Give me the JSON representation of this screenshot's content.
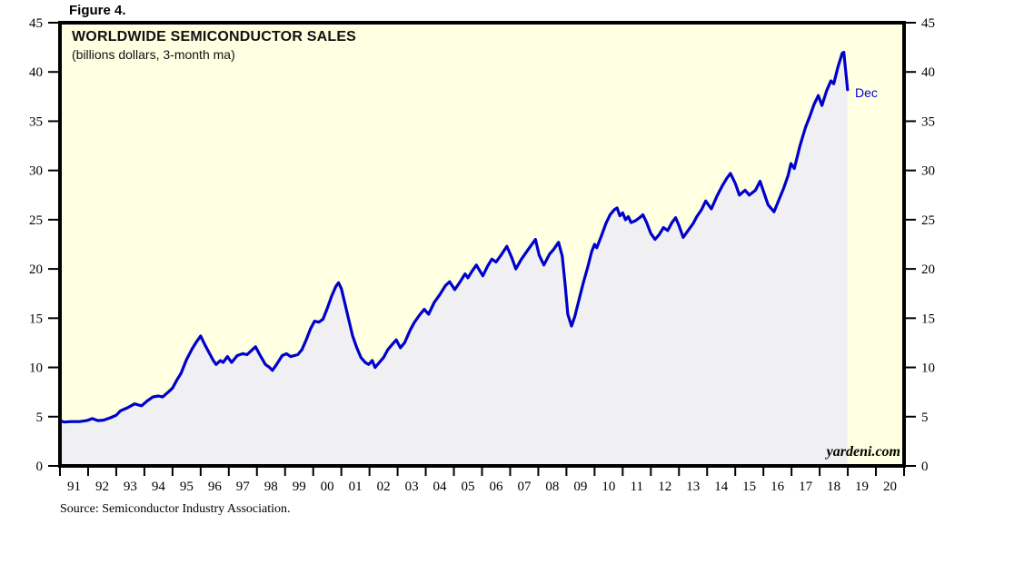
{
  "figure_label": "Figure 4.",
  "source_note": "Source: Semiconductor Industry Association.",
  "watermark": "yardeni.com",
  "chart_data": {
    "type": "line",
    "title": "WORLDWIDE SEMICONDUCTOR SALES",
    "subtitle": "(billions dollars, 3-month ma)",
    "series_name": "Worldwide semiconductor sales, billions of dollars, 3-month moving average",
    "xlabel": "",
    "ylabel": "",
    "x_range": [
      1991,
      2021
    ],
    "ylim": [
      0,
      45
    ],
    "y_ticks": [
      0,
      5,
      10,
      15,
      20,
      25,
      30,
      35,
      40,
      45
    ],
    "x_tick_labels": [
      "91",
      "92",
      "93",
      "94",
      "95",
      "96",
      "97",
      "98",
      "99",
      "00",
      "01",
      "02",
      "03",
      "04",
      "05",
      "06",
      "07",
      "08",
      "09",
      "10",
      "11",
      "12",
      "13",
      "14",
      "15",
      "16",
      "17",
      "18",
      "19",
      "20"
    ],
    "grid": false,
    "legend": "none",
    "plot_bg": "#ffffe1",
    "fill_color": "#f0f0f2",
    "line_color": "#0000cc",
    "annotations": [
      {
        "text": "Dec",
        "t": 2018.99,
        "v": 38.2
      }
    ],
    "points": [
      [
        1991.0,
        4.6
      ],
      [
        1991.15,
        4.45
      ],
      [
        1991.4,
        4.5
      ],
      [
        1991.7,
        4.5
      ],
      [
        1991.95,
        4.6
      ],
      [
        1992.15,
        4.8
      ],
      [
        1992.35,
        4.6
      ],
      [
        1992.55,
        4.65
      ],
      [
        1992.8,
        4.9
      ],
      [
        1993.0,
        5.15
      ],
      [
        1993.15,
        5.6
      ],
      [
        1993.4,
        5.9
      ],
      [
        1993.65,
        6.3
      ],
      [
        1993.9,
        6.1
      ],
      [
        1994.1,
        6.6
      ],
      [
        1994.3,
        7.0
      ],
      [
        1994.5,
        7.1
      ],
      [
        1994.65,
        7.0
      ],
      [
        1994.85,
        7.5
      ],
      [
        1995.0,
        7.9
      ],
      [
        1995.15,
        8.7
      ],
      [
        1995.3,
        9.4
      ],
      [
        1995.5,
        10.8
      ],
      [
        1995.7,
        11.9
      ],
      [
        1995.85,
        12.6
      ],
      [
        1996.0,
        13.2
      ],
      [
        1996.15,
        12.3
      ],
      [
        1996.3,
        11.5
      ],
      [
        1996.45,
        10.7
      ],
      [
        1996.55,
        10.3
      ],
      [
        1996.7,
        10.7
      ],
      [
        1996.8,
        10.5
      ],
      [
        1996.95,
        11.1
      ],
      [
        1997.1,
        10.5
      ],
      [
        1997.3,
        11.2
      ],
      [
        1997.5,
        11.4
      ],
      [
        1997.65,
        11.3
      ],
      [
        1997.8,
        11.7
      ],
      [
        1997.95,
        12.1
      ],
      [
        1998.1,
        11.3
      ],
      [
        1998.3,
        10.3
      ],
      [
        1998.45,
        10.0
      ],
      [
        1998.55,
        9.7
      ],
      [
        1998.7,
        10.3
      ],
      [
        1998.9,
        11.2
      ],
      [
        1999.05,
        11.4
      ],
      [
        1999.2,
        11.1
      ],
      [
        1999.45,
        11.3
      ],
      [
        1999.6,
        11.8
      ],
      [
        1999.75,
        12.8
      ],
      [
        1999.9,
        13.9
      ],
      [
        2000.05,
        14.7
      ],
      [
        2000.2,
        14.6
      ],
      [
        2000.35,
        14.9
      ],
      [
        2000.5,
        16.0
      ],
      [
        2000.65,
        17.2
      ],
      [
        2000.8,
        18.2
      ],
      [
        2000.9,
        18.6
      ],
      [
        2001.0,
        18.0
      ],
      [
        2001.1,
        16.8
      ],
      [
        2001.25,
        15.0
      ],
      [
        2001.4,
        13.2
      ],
      [
        2001.55,
        12.0
      ],
      [
        2001.7,
        11.0
      ],
      [
        2001.85,
        10.5
      ],
      [
        2001.97,
        10.3
      ],
      [
        2002.1,
        10.7
      ],
      [
        2002.2,
        10.0
      ],
      [
        2002.35,
        10.5
      ],
      [
        2002.5,
        11.0
      ],
      [
        2002.65,
        11.8
      ],
      [
        2002.8,
        12.3
      ],
      [
        2002.95,
        12.8
      ],
      [
        2003.1,
        12.0
      ],
      [
        2003.25,
        12.5
      ],
      [
        2003.45,
        13.8
      ],
      [
        2003.6,
        14.6
      ],
      [
        2003.8,
        15.4
      ],
      [
        2003.95,
        15.9
      ],
      [
        2004.1,
        15.4
      ],
      [
        2004.3,
        16.6
      ],
      [
        2004.5,
        17.4
      ],
      [
        2004.7,
        18.3
      ],
      [
        2004.85,
        18.7
      ],
      [
        2005.03,
        17.9
      ],
      [
        2005.2,
        18.6
      ],
      [
        2005.4,
        19.5
      ],
      [
        2005.5,
        19.1
      ],
      [
        2005.65,
        19.8
      ],
      [
        2005.8,
        20.4
      ],
      [
        2006.03,
        19.3
      ],
      [
        2006.2,
        20.3
      ],
      [
        2006.35,
        21.0
      ],
      [
        2006.5,
        20.7
      ],
      [
        2006.7,
        21.5
      ],
      [
        2006.88,
        22.3
      ],
      [
        2007.05,
        21.2
      ],
      [
        2007.2,
        20.0
      ],
      [
        2007.4,
        21.0
      ],
      [
        2007.6,
        21.8
      ],
      [
        2007.9,
        23.0
      ],
      [
        2008.03,
        21.4
      ],
      [
        2008.2,
        20.4
      ],
      [
        2008.4,
        21.5
      ],
      [
        2008.55,
        22.0
      ],
      [
        2008.72,
        22.7
      ],
      [
        2008.85,
        21.3
      ],
      [
        2008.95,
        18.5
      ],
      [
        2009.05,
        15.4
      ],
      [
        2009.18,
        14.2
      ],
      [
        2009.3,
        15.2
      ],
      [
        2009.45,
        16.9
      ],
      [
        2009.6,
        18.6
      ],
      [
        2009.75,
        20.1
      ],
      [
        2009.9,
        21.8
      ],
      [
        2010.0,
        22.5
      ],
      [
        2010.08,
        22.15
      ],
      [
        2010.25,
        23.4
      ],
      [
        2010.4,
        24.6
      ],
      [
        2010.55,
        25.5
      ],
      [
        2010.7,
        26.0
      ],
      [
        2010.8,
        26.2
      ],
      [
        2010.9,
        25.4
      ],
      [
        2011.0,
        25.7
      ],
      [
        2011.1,
        25.0
      ],
      [
        2011.2,
        25.3
      ],
      [
        2011.3,
        24.7
      ],
      [
        2011.45,
        24.9
      ],
      [
        2011.6,
        25.2
      ],
      [
        2011.72,
        25.5
      ],
      [
        2011.85,
        24.7
      ],
      [
        2012.0,
        23.6
      ],
      [
        2012.15,
        23.0
      ],
      [
        2012.3,
        23.5
      ],
      [
        2012.45,
        24.2
      ],
      [
        2012.6,
        23.9
      ],
      [
        2012.75,
        24.7
      ],
      [
        2012.88,
        25.2
      ],
      [
        2013.0,
        24.4
      ],
      [
        2013.15,
        23.2
      ],
      [
        2013.35,
        24.0
      ],
      [
        2013.5,
        24.6
      ],
      [
        2013.63,
        25.3
      ],
      [
        2013.8,
        26.0
      ],
      [
        2013.95,
        26.9
      ],
      [
        2014.15,
        26.1
      ],
      [
        2014.35,
        27.4
      ],
      [
        2014.55,
        28.5
      ],
      [
        2014.7,
        29.2
      ],
      [
        2014.83,
        29.7
      ],
      [
        2015.0,
        28.7
      ],
      [
        2015.15,
        27.5
      ],
      [
        2015.35,
        28.0
      ],
      [
        2015.5,
        27.5
      ],
      [
        2015.72,
        28.0
      ],
      [
        2015.88,
        28.9
      ],
      [
        2016.05,
        27.5
      ],
      [
        2016.17,
        26.5
      ],
      [
        2016.38,
        25.8
      ],
      [
        2016.55,
        27.0
      ],
      [
        2016.72,
        28.2
      ],
      [
        2016.88,
        29.5
      ],
      [
        2016.98,
        30.7
      ],
      [
        2017.1,
        30.2
      ],
      [
        2017.3,
        32.5
      ],
      [
        2017.5,
        34.4
      ],
      [
        2017.65,
        35.5
      ],
      [
        2017.8,
        36.7
      ],
      [
        2017.95,
        37.6
      ],
      [
        2018.08,
        36.6
      ],
      [
        2018.25,
        38.1
      ],
      [
        2018.4,
        39.1
      ],
      [
        2018.5,
        38.8
      ],
      [
        2018.65,
        40.5
      ],
      [
        2018.8,
        41.9
      ],
      [
        2018.86,
        42.0
      ],
      [
        2018.99,
        38.2
      ]
    ]
  }
}
